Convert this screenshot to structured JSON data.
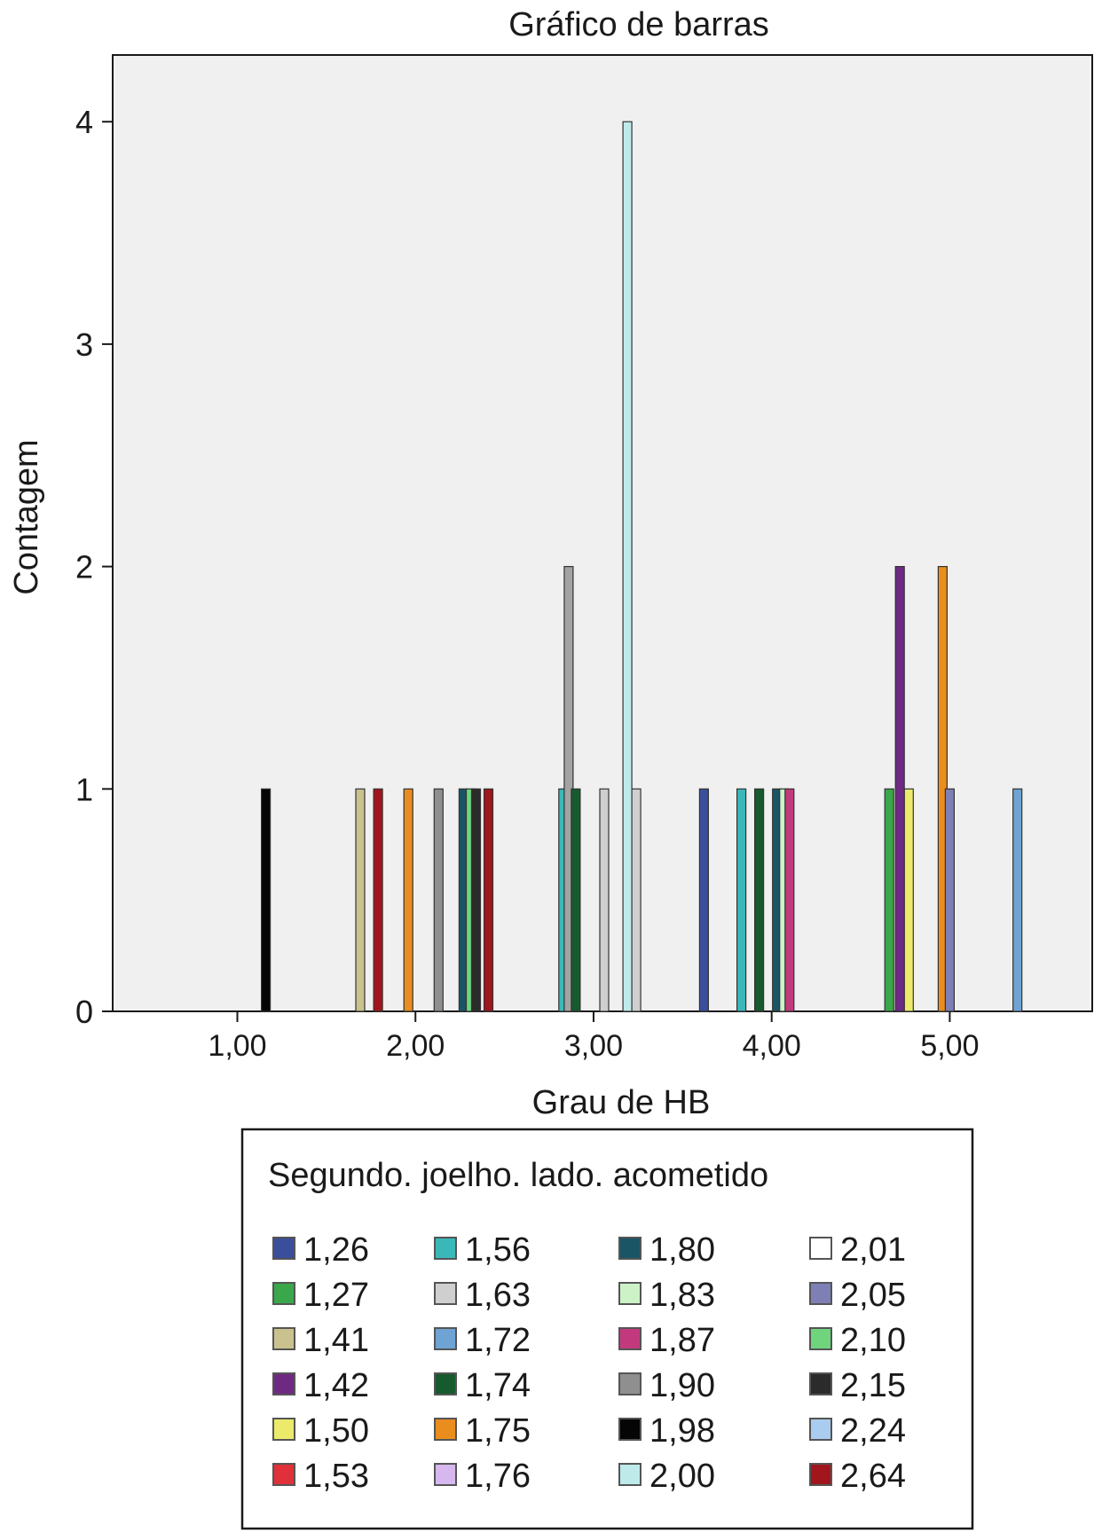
{
  "chart_data": {
    "type": "bar",
    "title": "Gráfico de barras",
    "xlabel": "Grau de HB",
    "ylabel": "Contagem",
    "xlim": [
      0.3,
      5.8
    ],
    "ylim": [
      0,
      4.3
    ],
    "x_ticks": [
      {
        "value": 1.0,
        "label": "1,00"
      },
      {
        "value": 2.0,
        "label": "2,00"
      },
      {
        "value": 3.0,
        "label": "3,00"
      },
      {
        "value": 4.0,
        "label": "4,00"
      },
      {
        "value": 5.0,
        "label": "5,00"
      }
    ],
    "y_ticks": [
      {
        "value": 0,
        "label": "0"
      },
      {
        "value": 1,
        "label": "1"
      },
      {
        "value": 2,
        "label": "2"
      },
      {
        "value": 3,
        "label": "3"
      },
      {
        "value": 4,
        "label": "4"
      }
    ],
    "grid": false,
    "background_color": "#f0f0f0",
    "legend": {
      "title": "Segundo. joelho. lado. acometido",
      "placement": "bottom",
      "entries": [
        {
          "label": "1,26",
          "color": "#3a4e9c"
        },
        {
          "label": "1,27",
          "color": "#3aa74a"
        },
        {
          "label": "1,41",
          "color": "#c9c28e"
        },
        {
          "label": "1,42",
          "color": "#6e2a83"
        },
        {
          "label": "1,50",
          "color": "#ecea6a"
        },
        {
          "label": "1,53",
          "color": "#e0303a"
        },
        {
          "label": "1,56",
          "color": "#3ab8b8"
        },
        {
          "label": "1,63",
          "color": "#cfcfcf"
        },
        {
          "label": "1,72",
          "color": "#6fa3d3"
        },
        {
          "label": "1,74",
          "color": "#165a2e"
        },
        {
          "label": "1,75",
          "color": "#e98e1e"
        },
        {
          "label": "1,76",
          "color": "#d6b8ef"
        },
        {
          "label": "1,80",
          "color": "#1a5566"
        },
        {
          "label": "1,83",
          "color": "#cdf2c8"
        },
        {
          "label": "1,87",
          "color": "#c23a7d"
        },
        {
          "label": "1,90",
          "color": "#8f8f8f"
        },
        {
          "label": "1,98",
          "color": "#050505"
        },
        {
          "label": "2,00",
          "color": "#bfeaea"
        },
        {
          "label": "2,01",
          "color": "#ffffff"
        },
        {
          "label": "2,05",
          "color": "#7e7fb5"
        },
        {
          "label": "2,10",
          "color": "#6fd57d"
        },
        {
          "label": "2,15",
          "color": "#2b2b2b"
        },
        {
          "label": "2,24",
          "color": "#a9ccef"
        },
        {
          "label": "2,64",
          "color": "#a0161c"
        }
      ]
    },
    "bars": [
      {
        "x": 1.16,
        "value": 1,
        "color": "#050505"
      },
      {
        "x": 1.69,
        "value": 1,
        "color": "#c9c28e"
      },
      {
        "x": 1.79,
        "value": 1,
        "color": "#a0161c"
      },
      {
        "x": 1.96,
        "value": 1,
        "color": "#e98e1e"
      },
      {
        "x": 2.13,
        "value": 1,
        "color": "#8f8f8f"
      },
      {
        "x": 2.27,
        "value": 1,
        "color": "#1a5566"
      },
      {
        "x": 2.31,
        "value": 1,
        "color": "#6fd57d"
      },
      {
        "x": 2.34,
        "value": 1,
        "color": "#2b2b2b"
      },
      {
        "x": 2.41,
        "value": 1,
        "color": "#a0161c"
      },
      {
        "x": 2.83,
        "value": 1,
        "color": "#3ab8b8"
      },
      {
        "x": 2.86,
        "value": 2,
        "color": "#a3a3a3"
      },
      {
        "x": 2.9,
        "value": 1,
        "color": "#165a2e"
      },
      {
        "x": 3.06,
        "value": 1,
        "color": "#cfcfcf"
      },
      {
        "x": 3.19,
        "value": 4,
        "color": "#bfeaea"
      },
      {
        "x": 3.24,
        "value": 1,
        "color": "#cfcfcf"
      },
      {
        "x": 3.62,
        "value": 1,
        "color": "#3a4e9c"
      },
      {
        "x": 3.83,
        "value": 1,
        "color": "#3ab8b8"
      },
      {
        "x": 3.93,
        "value": 1,
        "color": "#165a2e"
      },
      {
        "x": 4.03,
        "value": 1,
        "color": "#1a5566"
      },
      {
        "x": 4.07,
        "value": 1,
        "color": "#cdf2c8"
      },
      {
        "x": 4.1,
        "value": 1,
        "color": "#c23a7d"
      },
      {
        "x": 4.66,
        "value": 1,
        "color": "#3aa74a"
      },
      {
        "x": 4.72,
        "value": 2,
        "color": "#6e2a83"
      },
      {
        "x": 4.77,
        "value": 1,
        "color": "#ecea6a"
      },
      {
        "x": 4.96,
        "value": 2,
        "color": "#e98e1e"
      },
      {
        "x": 5.0,
        "value": 1,
        "color": "#7e7fb5"
      },
      {
        "x": 5.38,
        "value": 1,
        "color": "#6fa3d3"
      }
    ]
  }
}
